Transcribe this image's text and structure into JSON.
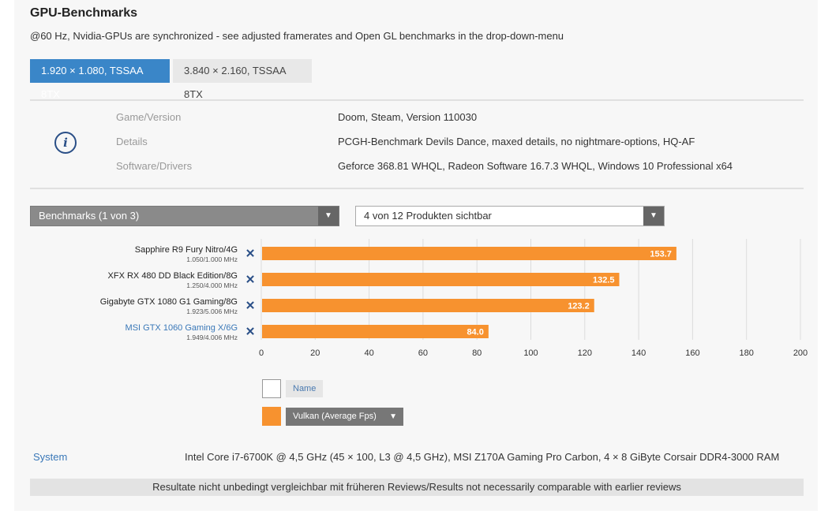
{
  "header": {
    "title": "GPU-Benchmarks",
    "subtitle": "@60 Hz, Nvidia-GPUs are synchronized - see adjusted framerates and Open GL benchmarks in the drop-down-menu"
  },
  "resolution_tabs": [
    {
      "label": "1.920 × 1.080, TSSAA 8TX",
      "active": true
    },
    {
      "label": "3.840 × 2.160, TSSAA 8TX",
      "active": false
    }
  ],
  "info": {
    "rows": [
      {
        "label": "Game/Version",
        "value": "Doom, Steam, Version 110030"
      },
      {
        "label": "Details",
        "value": "PCGH-Benchmark Devils Dance, maxed details, no nightmare-options, HQ-AF"
      },
      {
        "label": "Software/Drivers",
        "value": "Geforce 368.81 WHQL, Radeon Software 16.7.3 WHQL, Windows 10 Professional x64"
      }
    ]
  },
  "selectors": {
    "benchmarks": "Benchmarks (1 von 3)",
    "products": "4 von 12 Produkten sichtbar"
  },
  "chart_data": {
    "type": "bar",
    "orientation": "horizontal",
    "categories": [
      {
        "name": "Sapphire R9 Fury Nitro/4G",
        "clock": "1.050/1.000 MHz",
        "highlight": false
      },
      {
        "name": "XFX RX 480 DD Black Edition/8G",
        "clock": "1.250/4.000 MHz",
        "highlight": false
      },
      {
        "name": "Gigabyte GTX 1080 G1 Gaming/8G",
        "clock": "1.923/5.006 MHz",
        "highlight": false
      },
      {
        "name": "MSI GTX 1060 Gaming X/6G",
        "clock": "1.949/4.006 MHz",
        "highlight": true
      }
    ],
    "series": [
      {
        "name": "Vulkan (Average Fps)",
        "values": [
          153.7,
          132.5,
          123.2,
          84.0
        ],
        "labels": [
          "153.7",
          "132.5",
          "123.2",
          "84.0"
        ],
        "color": "#f7922f"
      }
    ],
    "xlim": [
      0,
      200
    ],
    "xticks": [
      0,
      20,
      40,
      60,
      80,
      100,
      120,
      140,
      160,
      180,
      200
    ],
    "grid": true,
    "remove_icon": "close-x-icon",
    "colors": {
      "bar": "#f7922f",
      "remove_icon": "#2a4f87",
      "highlight_label": "#3a78b8"
    }
  },
  "legend": {
    "name_label": "Name",
    "series_select": "Vulkan (Average Fps)"
  },
  "system": {
    "label": "System",
    "value": "Intel Core i7-6700K @ 4,5 GHz (45 × 100, L3 @ 4,5 GHz), MSI Z170A Gaming Pro Carbon, 4 × 8 GiByte Corsair DDR4-3000 RAM"
  },
  "footer": "Resultate nicht unbedingt vergleichbar mit früheren Reviews/Results not necessarily comparable with earlier reviews"
}
